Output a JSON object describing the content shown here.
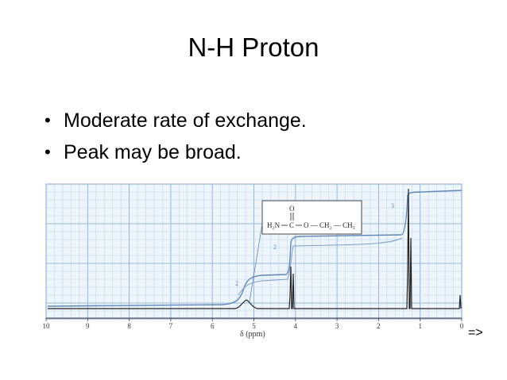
{
  "slide": {
    "title": "N-H Proton",
    "bullets": [
      "Moderate rate of exchange.",
      "Peak may be broad."
    ],
    "nav_label": "=>"
  },
  "spectrum": {
    "x_axis_label": "δ (ppm)",
    "x_ticks": [
      "10",
      "9",
      "8",
      "7",
      "6",
      "5",
      "4",
      "3",
      "2",
      "1",
      "0"
    ],
    "integration_labels": [
      "2",
      "2",
      "3"
    ],
    "structure": {
      "left_group": "H₂N",
      "carbon": "C",
      "oxygen_top": "O",
      "chain": "O — CH₂ — CH₃"
    },
    "colors": {
      "grid": "#a9c8e6",
      "grid_major": "#7fa9d4",
      "trace": "#222222",
      "integral": "#5f88b8"
    }
  }
}
